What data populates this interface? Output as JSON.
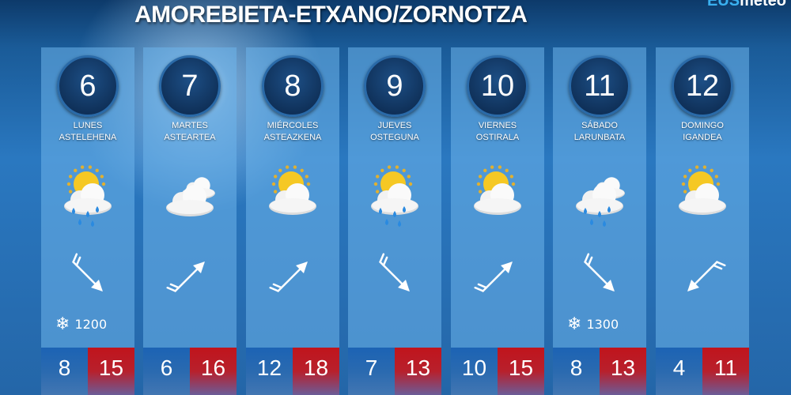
{
  "title": "AMOREBIETA-ETXANO/ZORNOTZA",
  "logo": "EUSmeteo",
  "days": [
    {
      "num": "6",
      "es": "LUNES",
      "eu": "ASTELEHENA",
      "weather": "sun-cloud-rain",
      "wind_dir_deg": 135,
      "snow": "1200",
      "low": "8",
      "high": "15"
    },
    {
      "num": "7",
      "es": "MARTES",
      "eu": "ASTEARTEA",
      "weather": "cloudy",
      "wind_dir_deg": 45,
      "snow": null,
      "low": "6",
      "high": "16"
    },
    {
      "num": "8",
      "es": "MIÉRCOLES",
      "eu": "ASTEAZKENA",
      "weather": "sun-cloud",
      "wind_dir_deg": 45,
      "snow": null,
      "low": "12",
      "high": "18"
    },
    {
      "num": "9",
      "es": "JUEVES",
      "eu": "OSTEGUNA",
      "weather": "sun-cloud-rain",
      "wind_dir_deg": 135,
      "snow": null,
      "low": "7",
      "high": "13"
    },
    {
      "num": "10",
      "es": "VIERNES",
      "eu": "OSTIRALA",
      "weather": "sun-cloud",
      "wind_dir_deg": 45,
      "snow": null,
      "low": "10",
      "high": "15"
    },
    {
      "num": "11",
      "es": "SÁBADO",
      "eu": "LARUNBATA",
      "weather": "cloud-rain",
      "wind_dir_deg": 135,
      "snow": "1300",
      "low": "8",
      "high": "13"
    },
    {
      "num": "12",
      "es": "DOMINGO",
      "eu": "IGANDEA",
      "weather": "sun-cloud",
      "wind_dir_deg": 225,
      "snow": null,
      "low": "4",
      "high": "11"
    }
  ],
  "colors": {
    "low": "#1c63b4",
    "high": "#c0141c",
    "circle": "#0a2548"
  }
}
